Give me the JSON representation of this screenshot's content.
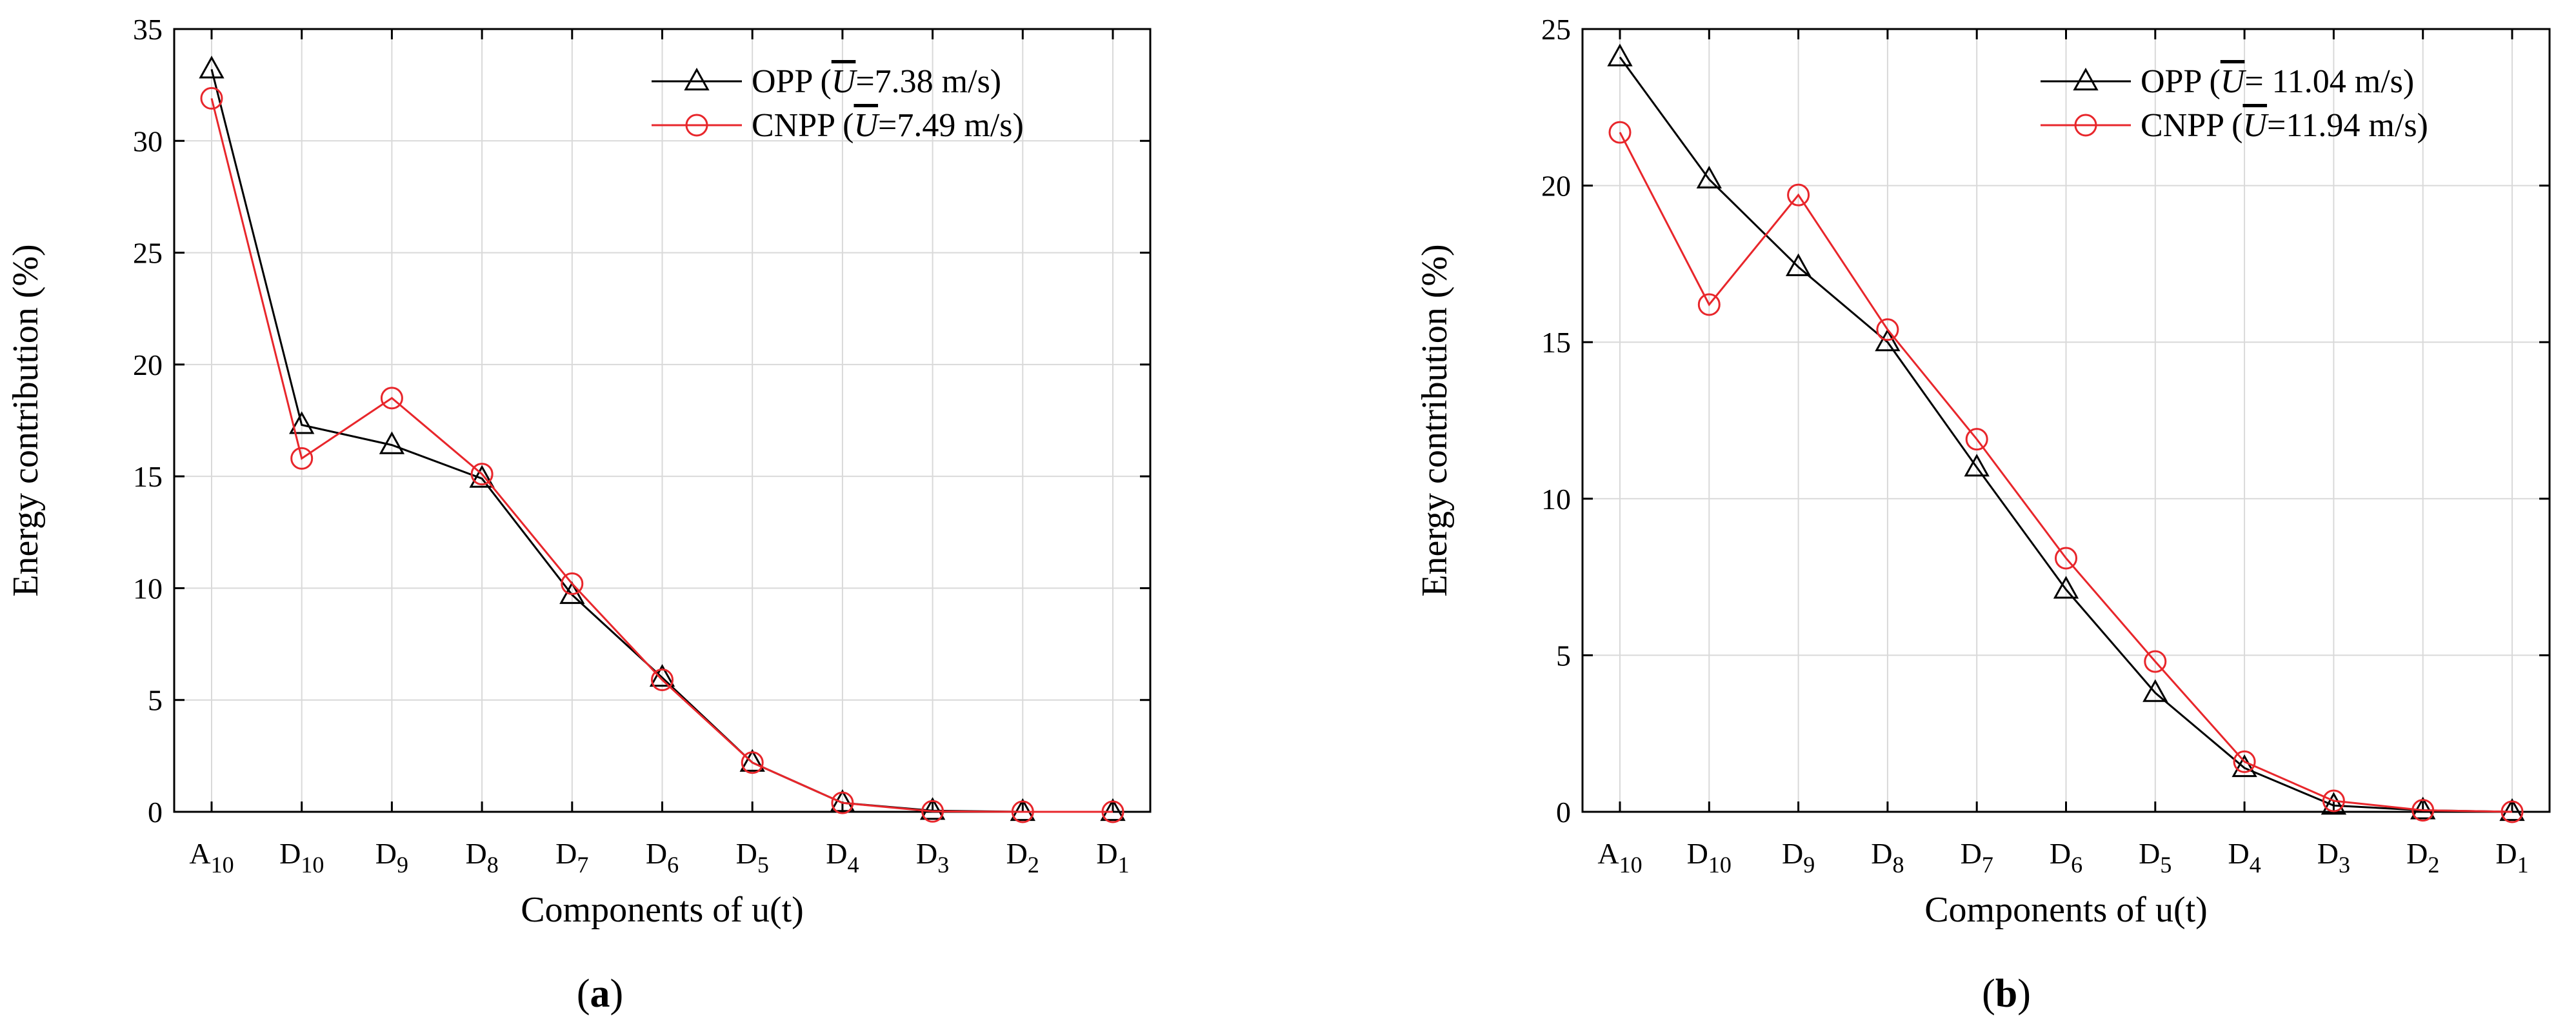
{
  "chart_data": [
    {
      "type": "line",
      "panel_label": "a",
      "title": "",
      "xlabel": "Components of u(t)",
      "ylabel": "Energy contribution (%)",
      "ylim": [
        0,
        35
      ],
      "yticks": [
        0,
        5,
        10,
        15,
        20,
        25,
        30,
        35
      ],
      "grid": true,
      "legend_position": "top-right",
      "categories": [
        {
          "base": "A",
          "sub": "10"
        },
        {
          "base": "D",
          "sub": "10"
        },
        {
          "base": "D",
          "sub": "9"
        },
        {
          "base": "D",
          "sub": "8"
        },
        {
          "base": "D",
          "sub": "7"
        },
        {
          "base": "D",
          "sub": "6"
        },
        {
          "base": "D",
          "sub": "5"
        },
        {
          "base": "D",
          "sub": "4"
        },
        {
          "base": "D",
          "sub": "3"
        },
        {
          "base": "D",
          "sub": "2"
        },
        {
          "base": "D",
          "sub": "1"
        }
      ],
      "series": [
        {
          "name": "OPP",
          "legend_prefix": "OPP (",
          "legend_var": "U",
          "legend_value": "=7.38 m/s)",
          "color": "#000000",
          "marker": "triangle",
          "values": [
            33.2,
            17.3,
            16.4,
            14.9,
            9.7,
            6.0,
            2.2,
            0.4,
            0.05,
            0.0,
            0.0
          ]
        },
        {
          "name": "CNPP",
          "legend_prefix": "CNPP (",
          "legend_var": "U",
          "legend_value": "=7.49 m/s)",
          "color": "#e8262b",
          "marker": "circle",
          "values": [
            31.9,
            15.8,
            18.5,
            15.1,
            10.2,
            5.9,
            2.2,
            0.4,
            0.02,
            0.0,
            0.0
          ]
        }
      ]
    },
    {
      "type": "line",
      "panel_label": "b",
      "title": "",
      "xlabel": "Components of u(t)",
      "ylabel": "Energy contribution (%)",
      "ylim": [
        0,
        25
      ],
      "yticks": [
        0,
        5,
        10,
        15,
        20,
        25
      ],
      "grid": true,
      "legend_position": "top-right",
      "categories": [
        {
          "base": "A",
          "sub": "10"
        },
        {
          "base": "D",
          "sub": "10"
        },
        {
          "base": "D",
          "sub": "9"
        },
        {
          "base": "D",
          "sub": "8"
        },
        {
          "base": "D",
          "sub": "7"
        },
        {
          "base": "D",
          "sub": "6"
        },
        {
          "base": "D",
          "sub": "5"
        },
        {
          "base": "D",
          "sub": "4"
        },
        {
          "base": "D",
          "sub": "3"
        },
        {
          "base": "D",
          "sub": "2"
        },
        {
          "base": "D",
          "sub": "1"
        }
      ],
      "series": [
        {
          "name": "OPP",
          "legend_prefix": "OPP (",
          "legend_var": "U",
          "legend_value": "= 11.04 m/s)",
          "color": "#000000",
          "marker": "triangle",
          "values": [
            24.1,
            20.2,
            17.4,
            15.0,
            11.0,
            7.1,
            3.8,
            1.4,
            0.2,
            0.05,
            0.0
          ]
        },
        {
          "name": "CNPP",
          "legend_prefix": "CNPP (",
          "legend_var": "U",
          "legend_value": "=11.94 m/s)",
          "color": "#e8262b",
          "marker": "circle",
          "values": [
            21.7,
            16.2,
            19.7,
            15.4,
            11.9,
            8.1,
            4.8,
            1.6,
            0.35,
            0.05,
            0.0
          ]
        }
      ]
    }
  ]
}
